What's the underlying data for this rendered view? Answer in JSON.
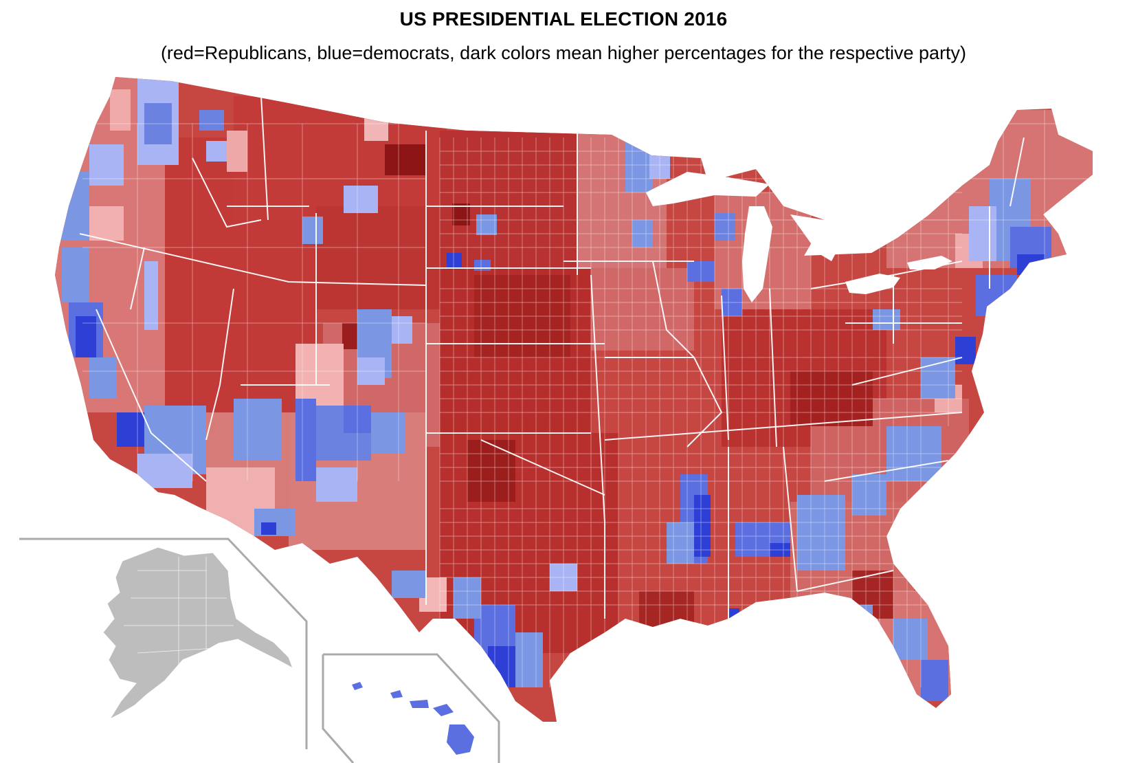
{
  "map": {
    "title": "US PRESIDENTIAL ELECTION 2016",
    "subtitle": "(red=Republicans, blue=democrats, dark colors mean higher percentages for the respective party)"
  },
  "palette": {
    "republican_darkest": "#8e1515",
    "republican_dark": "#b52a2a",
    "republican_mid": "#c9403e",
    "republican_light": "#d97777",
    "republican_lightest": "#f0aaaa",
    "democrat_darkest": "#2e3fd6",
    "democrat_dark": "#5b6fe0",
    "democrat_mid": "#7b96e3",
    "democrat_light": "#a9b4f5",
    "inset_gray": "#bdbdbd",
    "border": "#ffffff",
    "inset_frame": "#aaaaaa"
  }
}
